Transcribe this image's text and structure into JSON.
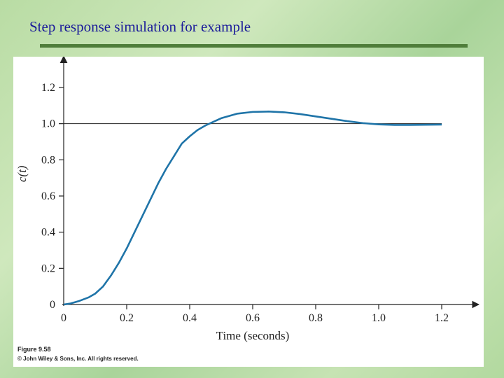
{
  "slide": {
    "title": "Step response simulation for example"
  },
  "figure": {
    "caption_number": "Figure 9.58",
    "caption_copyright": "© John Wiley & Sons, Inc. All rights reserved."
  },
  "colors": {
    "title_text": "#1a1a9a",
    "rule": "#4f7d3a",
    "curve": "#1f74a8",
    "axis": "#222222"
  },
  "chart_data": {
    "type": "line",
    "title": "",
    "xlabel": "Time (seconds)",
    "ylabel": "c(t)",
    "xlim": [
      0,
      1.3
    ],
    "ylim": [
      0,
      1.35
    ],
    "x_ticks": [
      "0",
      "0.2",
      "0.4",
      "0.6",
      "0.8",
      "1.0",
      "1.2"
    ],
    "x_tick_values": [
      0,
      0.2,
      0.4,
      0.6,
      0.8,
      1.0,
      1.2
    ],
    "y_ticks": [
      "0",
      "0.2",
      "0.4",
      "0.6",
      "0.8",
      "1.0",
      "1.2"
    ],
    "y_tick_values": [
      0,
      0.2,
      0.4,
      0.6,
      0.8,
      1.0,
      1.2
    ],
    "reference_line": {
      "y": 1.0,
      "x_range": [
        0,
        1.2
      ]
    },
    "grid": false,
    "series": [
      {
        "x": [
          0,
          0.02,
          0.05,
          0.08,
          0.1,
          0.125,
          0.15,
          0.175,
          0.2,
          0.225,
          0.25,
          0.275,
          0.3,
          0.325,
          0.35,
          0.375,
          0.4,
          0.425,
          0.45,
          0.475,
          0.5,
          0.55,
          0.6,
          0.65,
          0.7,
          0.75,
          0.8,
          0.85,
          0.9,
          0.95,
          1.0,
          1.05,
          1.1,
          1.15,
          1.2
        ],
        "y": [
          0,
          0.005,
          0.02,
          0.04,
          0.06,
          0.1,
          0.16,
          0.23,
          0.31,
          0.4,
          0.49,
          0.58,
          0.67,
          0.75,
          0.82,
          0.89,
          0.93,
          0.965,
          0.99,
          1.01,
          1.03,
          1.055,
          1.065,
          1.067,
          1.063,
          1.053,
          1.04,
          1.027,
          1.014,
          1.003,
          0.996,
          0.993,
          0.993,
          0.994,
          0.995
        ]
      }
    ]
  }
}
